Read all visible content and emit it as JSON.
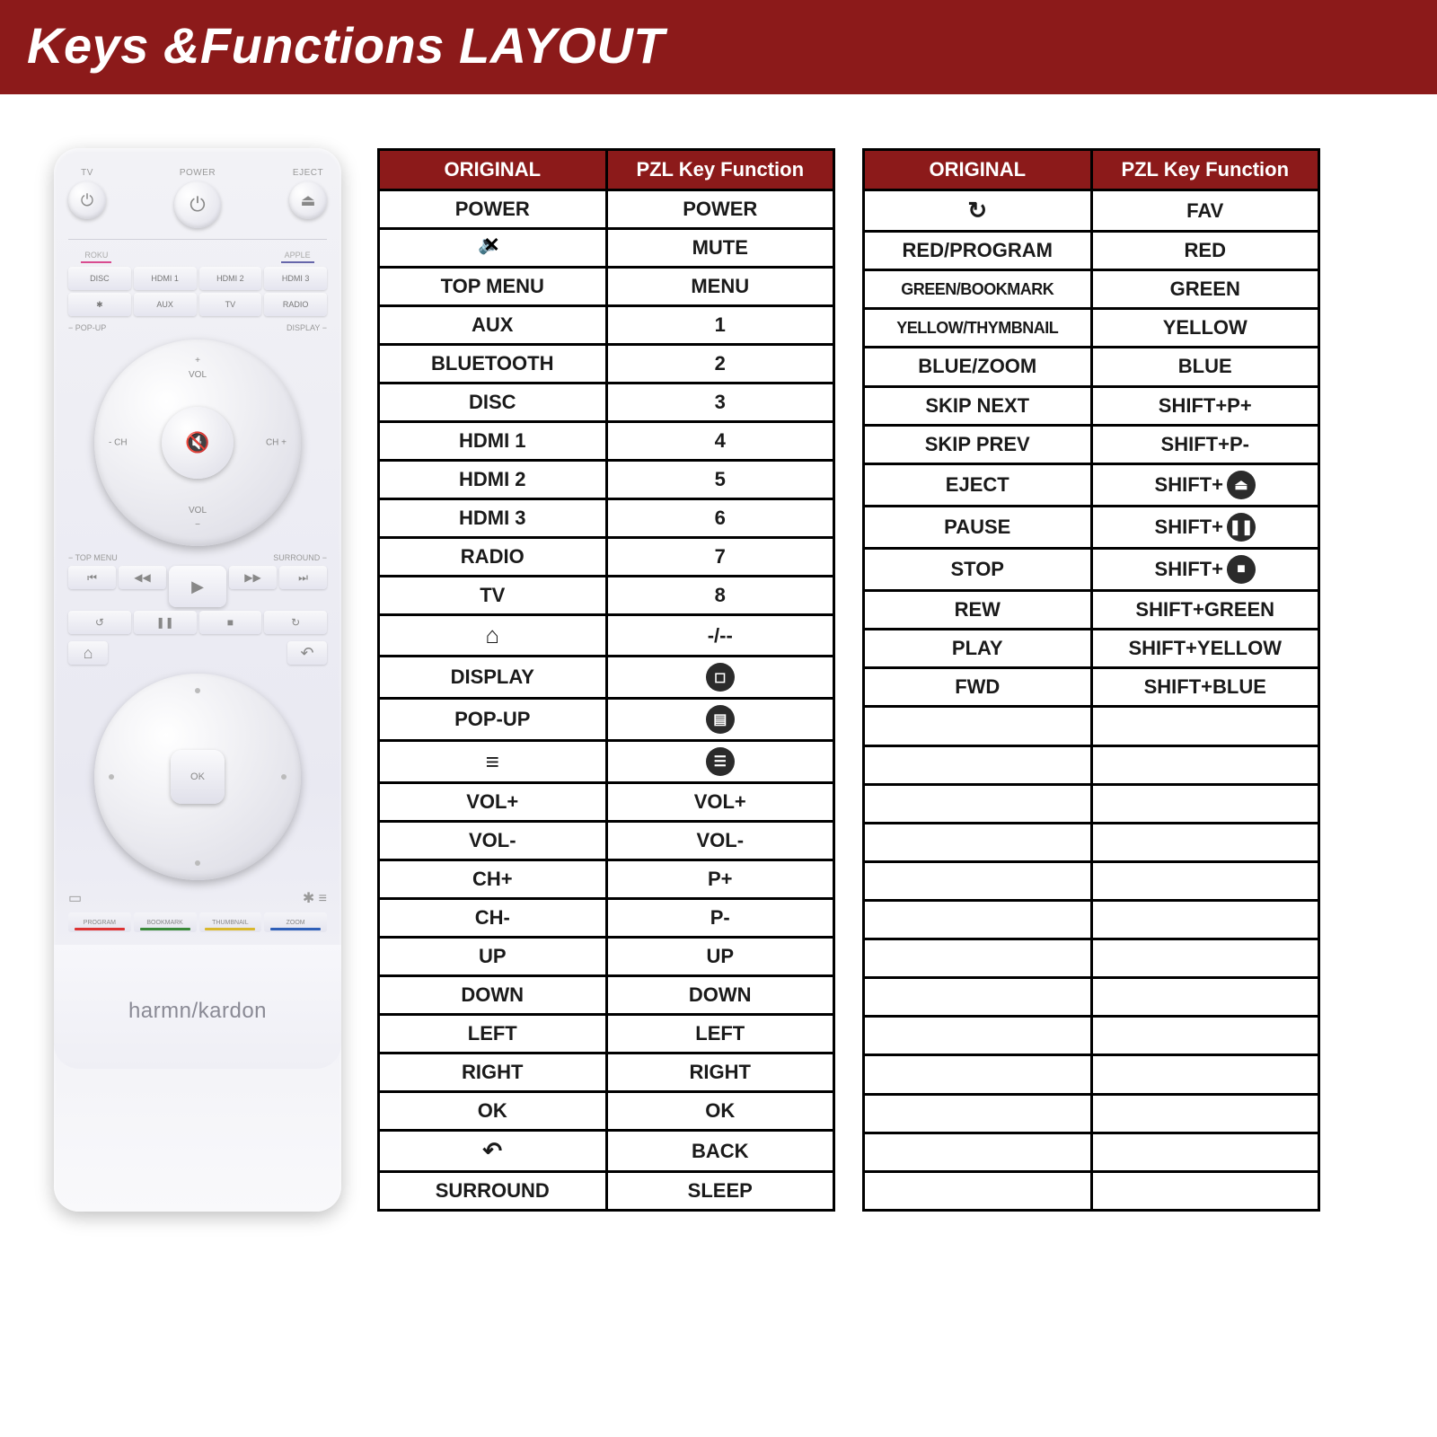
{
  "header": {
    "title": "Keys &Functions LAYOUT"
  },
  "colors": {
    "header_bg": "#8c1a1a",
    "table_header_bg": "#8c1a1a",
    "table_header_fg": "#ffffff",
    "table_border": "#000000",
    "page_bg": "#ffffff"
  },
  "remote": {
    "top": {
      "tv": "TV",
      "power": "POWER",
      "eject": "EJECT"
    },
    "source_tabs": {
      "left": "ROKU",
      "right": "APPLE"
    },
    "sources": [
      "DISC",
      "HDMI 1",
      "HDMI 2",
      "HDMI 3",
      "✱",
      "AUX",
      "TV",
      "RADIO"
    ],
    "edge": {
      "popup": "POP-UP",
      "display": "DISPLAY"
    },
    "dial": {
      "vol_plus": "+",
      "vol_minus": "−",
      "vol_label": "VOL",
      "ch_minus": "- CH",
      "ch_plus": "CH +"
    },
    "menu_row": {
      "left": "TOP MENU",
      "right": "SURROUND"
    },
    "transport": {
      "prev": "⏮",
      "rew": "◀◀",
      "play": "▶",
      "fwd": "▶▶",
      "next": "⏭",
      "back": "↺",
      "pause": "❚❚",
      "stop": "■",
      "loop": "↻"
    },
    "home_back": {
      "home": "⌂",
      "back": "↶"
    },
    "nav_ok": "OK",
    "bottom_icons": {
      "left": "▭",
      "right": "✱ ≡"
    },
    "color_buttons": {
      "red": "PROGRAM",
      "green": "BOOKMARK",
      "yellow": "THUMBNAIL",
      "blue": "ZOOM"
    },
    "brand": "harmn/kardon"
  },
  "tables": {
    "headers": {
      "original": "ORIGINAL",
      "pzl": "PZL Key Function"
    },
    "left": [
      {
        "o": "POWER",
        "p": "POWER"
      },
      {
        "o_icon": "mute",
        "p": "MUTE"
      },
      {
        "o": "TOP MENU",
        "p": "MENU"
      },
      {
        "o": "AUX",
        "p": "1"
      },
      {
        "o": "BLUETOOTH",
        "p": "2"
      },
      {
        "o": "DISC",
        "p": "3"
      },
      {
        "o": "HDMI 1",
        "p": "4"
      },
      {
        "o": "HDMI 2",
        "p": "5"
      },
      {
        "o": "HDMI 3",
        "p": "6"
      },
      {
        "o": "RADIO",
        "p": "7"
      },
      {
        "o": "TV",
        "p": "8"
      },
      {
        "o_glyph": "⌂",
        "p": "-/--"
      },
      {
        "o": "DISPLAY",
        "p_icon": "◻"
      },
      {
        "o": "POP-UP",
        "p_icon": "▤"
      },
      {
        "o_glyph": "≡",
        "p_icon": "☰"
      },
      {
        "o": "VOL+",
        "p": "VOL+"
      },
      {
        "o": "VOL-",
        "p": "VOL-"
      },
      {
        "o": "CH+",
        "p": "P+"
      },
      {
        "o": "CH-",
        "p": "P-"
      },
      {
        "o": "UP",
        "p": "UP"
      },
      {
        "o": "DOWN",
        "p": "DOWN"
      },
      {
        "o": "LEFT",
        "p": "LEFT"
      },
      {
        "o": "RIGHT",
        "p": "RIGHT"
      },
      {
        "o": "OK",
        "p": "OK"
      },
      {
        "o_glyph": "↶",
        "p": "BACK"
      },
      {
        "o": "SURROUND",
        "p": "SLEEP"
      }
    ],
    "right": [
      {
        "o_glyph": "↻",
        "p": "FAV"
      },
      {
        "o": "RED/PROGRAM",
        "p": "RED"
      },
      {
        "o": "GREEN/BOOKMARK",
        "p": "GREEN",
        "small": true
      },
      {
        "o": "YELLOW/THYMBNAIL",
        "p": "YELLOW",
        "small": true
      },
      {
        "o": "BLUE/ZOOM",
        "p": "BLUE"
      },
      {
        "o": "SKIP NEXT",
        "p": "SHIFT+P+"
      },
      {
        "o": "SKIP PREV",
        "p": "SHIFT+P-"
      },
      {
        "o": "EJECT",
        "p_shift_icon": "⏏"
      },
      {
        "o": "PAUSE",
        "p_shift_icon": "❚❚"
      },
      {
        "o": "STOP",
        "p_shift_icon": "■"
      },
      {
        "o": "REW",
        "p": "SHIFT+GREEN"
      },
      {
        "o": "PLAY",
        "p": "SHIFT+YELLOW"
      },
      {
        "o": "FWD",
        "p": "SHIFT+BLUE"
      }
    ],
    "right_empty_rows": 13,
    "shift_prefix": "SHIFT+"
  }
}
